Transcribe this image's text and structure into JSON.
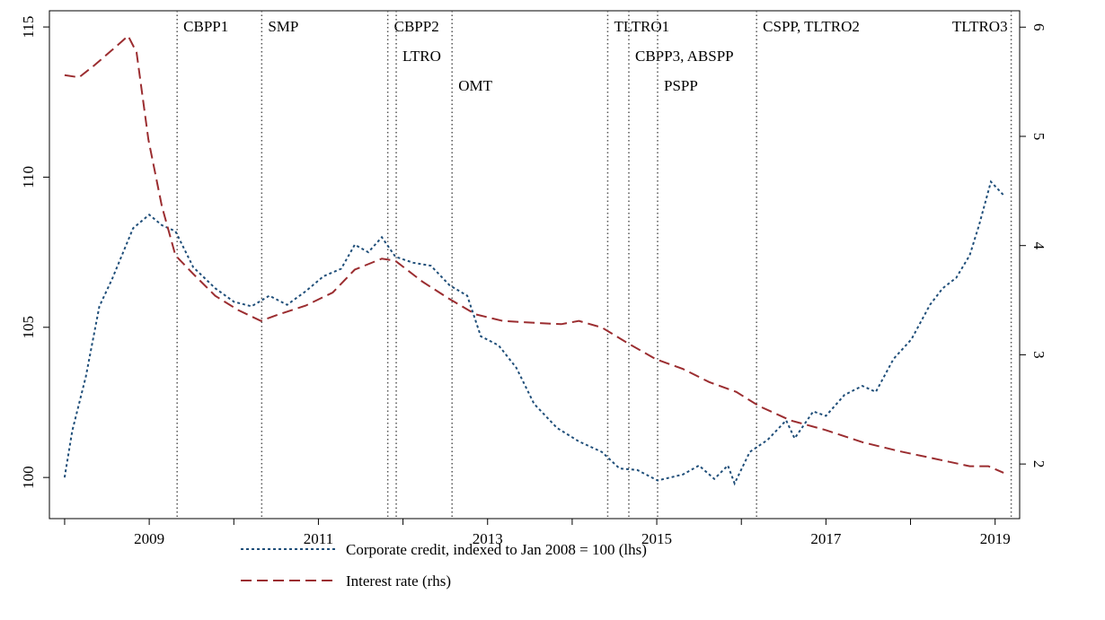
{
  "chart_data": {
    "type": "line",
    "xlim": [
      2007.82,
      2019.29
    ],
    "xticks": [
      2009,
      2011,
      2013,
      2015,
      2017,
      2019
    ],
    "xminor_ticks": [
      2008,
      2010,
      2012,
      2014,
      2016,
      2018
    ],
    "ylim": [
      98.63,
      115.54
    ],
    "yticks": [
      100,
      105,
      110,
      115
    ],
    "y2lim": [
      1.5,
      6.15
    ],
    "y2ticks": [
      2,
      3,
      4,
      5,
      6
    ],
    "events": [
      {
        "label": "CBPP1",
        "x": 2009.33
      },
      {
        "label": "SMP",
        "x": 2010.33
      },
      {
        "label": "CBPP2",
        "x": 2011.82
      },
      {
        "label": "LTRO",
        "x": 2011.92
      },
      {
        "label": "OMT",
        "x": 2012.58
      },
      {
        "label": "TLTRO1",
        "x": 2014.42
      },
      {
        "label": "CBPP3, ABSPP",
        "x": 2014.67
      },
      {
        "label": "PSPP",
        "x": 2015.01
      },
      {
        "label": "CSPP, TLTRO2",
        "x": 2016.18
      },
      {
        "label": "TLTRO3",
        "x": 2019.19
      }
    ],
    "series": [
      {
        "name": "Corporate credit, indexed to Jan 2008 = 100 (lhs)",
        "color": "#1f4e79",
        "style": "dotted",
        "x": [
          2008.0,
          2008.09,
          2008.25,
          2008.41,
          2008.56,
          2008.81,
          2009.0,
          2009.15,
          2009.31,
          2009.52,
          2009.78,
          2010.0,
          2010.21,
          2010.42,
          2010.63,
          2010.85,
          2011.06,
          2011.27,
          2011.43,
          2011.59,
          2011.75,
          2011.91,
          2012.12,
          2012.33,
          2012.55,
          2012.76,
          2012.92,
          2013.13,
          2013.34,
          2013.55,
          2013.82,
          2014.08,
          2014.35,
          2014.56,
          2014.77,
          2015.01,
          2015.31,
          2015.5,
          2015.68,
          2015.84,
          2015.92,
          2016.1,
          2016.31,
          2016.53,
          2016.63,
          2016.85,
          2017.0,
          2017.22,
          2017.43,
          2017.59,
          2017.8,
          2018.01,
          2018.23,
          2018.38,
          2018.54,
          2018.7,
          2018.81,
          2018.95,
          2019.1
        ],
        "values": [
          100,
          101.55,
          103.35,
          105.7,
          106.6,
          108.3,
          108.75,
          108.4,
          108.2,
          107.0,
          106.3,
          105.85,
          105.7,
          106.05,
          105.75,
          106.2,
          106.7,
          106.95,
          107.75,
          107.5,
          108.0,
          107.35,
          107.15,
          107.05,
          106.4,
          106.05,
          104.7,
          104.4,
          103.65,
          102.45,
          101.65,
          101.2,
          100.85,
          100.3,
          100.25,
          99.9,
          100.1,
          100.4,
          99.95,
          100.4,
          99.8,
          100.85,
          101.25,
          101.9,
          101.3,
          102.2,
          102.05,
          102.75,
          103.05,
          102.85,
          103.95,
          104.6,
          105.75,
          106.3,
          106.65,
          107.4,
          108.4,
          109.85,
          109.4
        ]
      },
      {
        "name": "Interest rate (rhs)",
        "color": "#9b2d30",
        "style": "dashed",
        "axis": "y2",
        "x": [
          2008.0,
          2008.17,
          2008.35,
          2008.56,
          2008.75,
          2008.85,
          2008.99,
          2009.15,
          2009.31,
          2009.52,
          2009.78,
          2010.05,
          2010.32,
          2010.53,
          2010.85,
          2011.17,
          2011.43,
          2011.75,
          2011.91,
          2012.23,
          2012.55,
          2012.86,
          2013.18,
          2013.61,
          2013.87,
          2014.08,
          2014.35,
          2014.67,
          2014.99,
          2015.31,
          2015.62,
          2015.94,
          2016.21,
          2016.58,
          2017.0,
          2017.43,
          2017.85,
          2018.28,
          2018.7,
          2018.92,
          2019.1
        ],
        "values": [
          5.56,
          5.54,
          5.65,
          5.79,
          5.92,
          5.77,
          4.97,
          4.36,
          3.91,
          3.74,
          3.54,
          3.41,
          3.31,
          3.37,
          3.45,
          3.57,
          3.78,
          3.88,
          3.86,
          3.67,
          3.51,
          3.37,
          3.31,
          3.29,
          3.28,
          3.31,
          3.25,
          3.1,
          2.96,
          2.87,
          2.75,
          2.66,
          2.53,
          2.4,
          2.31,
          2.2,
          2.12,
          2.05,
          1.98,
          1.98,
          1.92
        ]
      }
    ]
  }
}
